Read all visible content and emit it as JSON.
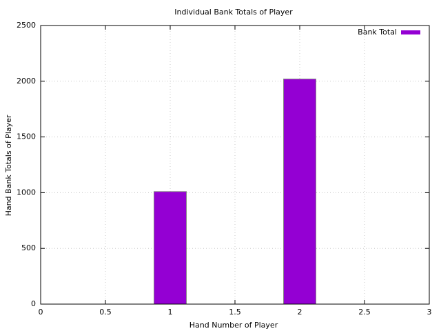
{
  "chart_data": {
    "type": "bar",
    "title": "Individual Bank Totals of Player",
    "x_label": "Hand Number of Player",
    "y_label": "Hand Bank Totals of Player",
    "x": [
      1,
      2
    ],
    "series": [
      {
        "name": "Bank Total",
        "color": "#9400d3",
        "values": [
          1010,
          2020
        ]
      }
    ],
    "xlim": [
      0,
      3
    ],
    "xticks": [
      0,
      0.5,
      1,
      1.5,
      2,
      2.5,
      3
    ],
    "ylim": [
      0,
      2500
    ],
    "yticks": [
      0,
      500,
      1000,
      1500,
      2000,
      2500
    ],
    "grid": true,
    "legend": "top-right"
  }
}
